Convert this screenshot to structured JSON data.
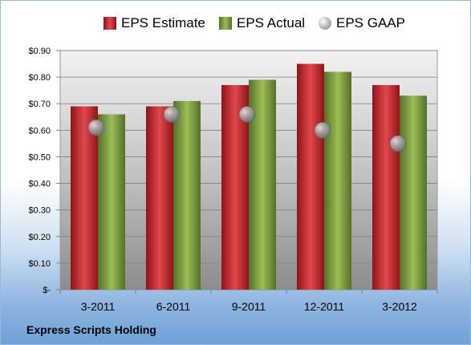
{
  "company": "Express Scripts Holding",
  "chart_data": {
    "type": "bar",
    "categories": [
      "3-2011",
      "6-2011",
      "9-2011",
      "12-2011",
      "3-2012"
    ],
    "series": [
      {
        "name": "EPS Estimate",
        "values": [
          0.69,
          0.69,
          0.77,
          0.85,
          0.77
        ],
        "color": "#c8262b",
        "kind": "bar"
      },
      {
        "name": "EPS Actual",
        "values": [
          0.66,
          0.71,
          0.79,
          0.82,
          0.73
        ],
        "color": "#7a9a3c",
        "kind": "bar"
      },
      {
        "name": "EPS GAAP",
        "values": [
          0.61,
          0.66,
          0.66,
          0.6,
          0.55
        ],
        "color": "#b0b4b8",
        "kind": "marker"
      }
    ],
    "yticks": [
      "$-",
      "$0.10",
      "$0.20",
      "$0.30",
      "$0.40",
      "$0.50",
      "$0.60",
      "$0.70",
      "$0.80",
      "$0.90"
    ],
    "ylim": [
      0,
      0.9
    ],
    "grid": true,
    "legend_position": "top"
  }
}
